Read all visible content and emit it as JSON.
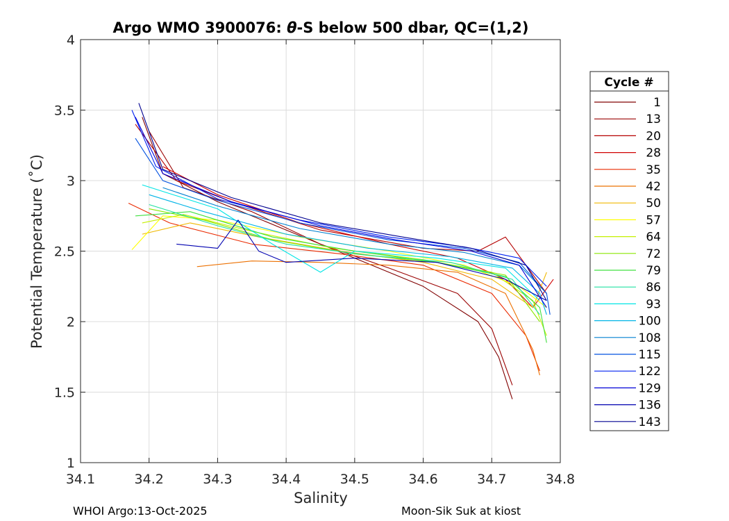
{
  "chart_data": {
    "type": "line",
    "title_prefix": "Argo WMO 3900076: ",
    "title_theta": "θ",
    "title_suffix": "-S below 500 dbar,  QC=(1,2)",
    "xlabel": "Salinity",
    "ylabel": "Potential Temperature (˚C)",
    "xlim": [
      34.1,
      34.8
    ],
    "ylim": [
      1,
      4
    ],
    "xticks": [
      34.1,
      34.2,
      34.3,
      34.4,
      34.5,
      34.6,
      34.7,
      34.8
    ],
    "xtick_labels": [
      "34.1",
      "34.2",
      "34.3",
      "34.4",
      "34.5",
      "34.6",
      "34.7",
      "34.8"
    ],
    "yticks": [
      1,
      1.5,
      2,
      2.5,
      3,
      3.5,
      4
    ],
    "ytick_labels": [
      "1",
      "1.5",
      "2",
      "2.5",
      "3",
      "3.5",
      "4"
    ],
    "grid": true,
    "legend_title": "Cycle #",
    "legend_position": "outside-right",
    "series": [
      {
        "name": "1",
        "color": "#800000",
        "points": [
          [
            34.19,
            3.45
          ],
          [
            34.22,
            3.05
          ],
          [
            34.3,
            2.85
          ],
          [
            34.4,
            2.65
          ],
          [
            34.5,
            2.45
          ],
          [
            34.6,
            2.25
          ],
          [
            34.68,
            2.0
          ],
          [
            34.71,
            1.75
          ],
          [
            34.73,
            1.45
          ]
        ]
      },
      {
        "name": "13",
        "color": "#9a0000",
        "points": [
          [
            34.2,
            3.35
          ],
          [
            34.25,
            2.95
          ],
          [
            34.35,
            2.78
          ],
          [
            34.45,
            2.55
          ],
          [
            34.55,
            2.38
          ],
          [
            34.65,
            2.2
          ],
          [
            34.7,
            1.95
          ],
          [
            34.73,
            1.55
          ]
        ]
      },
      {
        "name": "20",
        "color": "#b50000",
        "points": [
          [
            34.18,
            3.4
          ],
          [
            34.24,
            3.0
          ],
          [
            34.32,
            2.85
          ],
          [
            34.45,
            2.65
          ],
          [
            34.6,
            2.52
          ],
          [
            34.68,
            2.5
          ],
          [
            34.72,
            2.6
          ],
          [
            34.75,
            2.4
          ],
          [
            34.78,
            2.2
          ]
        ]
      },
      {
        "name": "28",
        "color": "#d00000",
        "points": [
          [
            34.22,
            3.1
          ],
          [
            34.3,
            2.9
          ],
          [
            34.42,
            2.7
          ],
          [
            34.55,
            2.55
          ],
          [
            34.65,
            2.45
          ],
          [
            34.72,
            2.3
          ],
          [
            34.76,
            2.1
          ],
          [
            34.79,
            2.3
          ]
        ]
      },
      {
        "name": "35",
        "color": "#ea2a00",
        "points": [
          [
            34.17,
            2.84
          ],
          [
            34.23,
            2.7
          ],
          [
            34.35,
            2.55
          ],
          [
            34.48,
            2.48
          ],
          [
            34.6,
            2.4
          ],
          [
            34.7,
            2.2
          ],
          [
            34.75,
            1.9
          ],
          [
            34.77,
            1.65
          ]
        ]
      },
      {
        "name": "42",
        "color": "#ec7000",
        "points": [
          [
            34.27,
            2.39
          ],
          [
            34.35,
            2.43
          ],
          [
            34.45,
            2.42
          ],
          [
            34.55,
            2.4
          ],
          [
            34.65,
            2.35
          ],
          [
            34.72,
            2.2
          ],
          [
            34.76,
            1.8
          ],
          [
            34.77,
            1.62
          ]
        ]
      },
      {
        "name": "50",
        "color": "#f0b800",
        "points": [
          [
            34.19,
            2.62
          ],
          [
            34.26,
            2.7
          ],
          [
            34.36,
            2.6
          ],
          [
            34.48,
            2.5
          ],
          [
            34.6,
            2.42
          ],
          [
            34.7,
            2.3
          ],
          [
            34.76,
            2.1
          ],
          [
            34.78,
            2.35
          ]
        ]
      },
      {
        "name": "57",
        "color": "#ffff00",
        "points": [
          [
            34.175,
            2.51
          ],
          [
            34.22,
            2.75
          ],
          [
            34.3,
            2.72
          ],
          [
            34.42,
            2.6
          ],
          [
            34.55,
            2.5
          ],
          [
            34.66,
            2.4
          ],
          [
            34.74,
            2.25
          ],
          [
            34.78,
            2.1
          ]
        ]
      },
      {
        "name": "64",
        "color": "#c4f000",
        "points": [
          [
            34.19,
            2.7
          ],
          [
            34.25,
            2.76
          ],
          [
            34.35,
            2.64
          ],
          [
            34.47,
            2.52
          ],
          [
            34.6,
            2.44
          ],
          [
            34.7,
            2.35
          ],
          [
            34.76,
            2.15
          ],
          [
            34.78,
            1.9
          ]
        ]
      },
      {
        "name": "72",
        "color": "#8ae600",
        "points": [
          [
            34.2,
            2.8
          ],
          [
            34.28,
            2.72
          ],
          [
            34.38,
            2.58
          ],
          [
            34.5,
            2.48
          ],
          [
            34.62,
            2.42
          ],
          [
            34.72,
            2.33
          ],
          [
            34.77,
            2.0
          ]
        ]
      },
      {
        "name": "79",
        "color": "#40e040",
        "points": [
          [
            34.18,
            2.75
          ],
          [
            34.26,
            2.78
          ],
          [
            34.38,
            2.6
          ],
          [
            34.5,
            2.5
          ],
          [
            34.62,
            2.42
          ],
          [
            34.72,
            2.32
          ],
          [
            34.77,
            2.1
          ],
          [
            34.78,
            1.85
          ]
        ]
      },
      {
        "name": "86",
        "color": "#20e0a0",
        "points": [
          [
            34.2,
            2.83
          ],
          [
            34.3,
            2.68
          ],
          [
            34.4,
            2.55
          ],
          [
            34.52,
            2.47
          ],
          [
            34.64,
            2.42
          ],
          [
            34.73,
            2.3
          ],
          [
            34.77,
            2.05
          ]
        ]
      },
      {
        "name": "93",
        "color": "#00e5e5",
        "points": [
          [
            34.19,
            2.97
          ],
          [
            34.3,
            2.8
          ],
          [
            34.38,
            2.55
          ],
          [
            34.45,
            2.35
          ],
          [
            34.5,
            2.5
          ],
          [
            34.62,
            2.45
          ],
          [
            34.72,
            2.38
          ],
          [
            34.77,
            2.15
          ]
        ]
      },
      {
        "name": "100",
        "color": "#00b4e6",
        "points": [
          [
            34.2,
            2.9
          ],
          [
            34.28,
            2.78
          ],
          [
            34.4,
            2.62
          ],
          [
            34.52,
            2.52
          ],
          [
            34.64,
            2.46
          ],
          [
            34.73,
            2.38
          ],
          [
            34.77,
            2.2
          ],
          [
            34.78,
            2.05
          ]
        ]
      },
      {
        "name": "108",
        "color": "#0080d0",
        "points": [
          [
            34.22,
            2.95
          ],
          [
            34.3,
            2.82
          ],
          [
            34.42,
            2.66
          ],
          [
            34.55,
            2.55
          ],
          [
            34.66,
            2.49
          ],
          [
            34.74,
            2.4
          ],
          [
            34.78,
            2.2
          ]
        ]
      },
      {
        "name": "115",
        "color": "#0050e0",
        "points": [
          [
            34.18,
            3.3
          ],
          [
            34.22,
            3.0
          ],
          [
            34.3,
            2.86
          ],
          [
            34.42,
            2.7
          ],
          [
            34.55,
            2.58
          ],
          [
            34.66,
            2.52
          ],
          [
            34.74,
            2.42
          ],
          [
            34.78,
            2.2
          ],
          [
            34.785,
            2.05
          ]
        ]
      },
      {
        "name": "122",
        "color": "#0020f0",
        "points": [
          [
            34.175,
            3.5
          ],
          [
            34.21,
            3.1
          ],
          [
            34.3,
            2.87
          ],
          [
            34.42,
            2.72
          ],
          [
            34.55,
            2.6
          ],
          [
            34.66,
            2.53
          ],
          [
            34.74,
            2.45
          ],
          [
            34.78,
            2.25
          ]
        ]
      },
      {
        "name": "129",
        "color": "#0000d8",
        "points": [
          [
            34.18,
            3.45
          ],
          [
            34.22,
            3.05
          ],
          [
            34.32,
            2.85
          ],
          [
            34.45,
            2.68
          ],
          [
            34.56,
            2.58
          ],
          [
            34.67,
            2.5
          ],
          [
            34.74,
            2.4
          ],
          [
            34.78,
            2.1
          ]
        ]
      },
      {
        "name": "136",
        "color": "#0000b0",
        "points": [
          [
            34.24,
            2.55
          ],
          [
            34.3,
            2.52
          ],
          [
            34.33,
            2.72
          ],
          [
            34.36,
            2.5
          ],
          [
            34.4,
            2.42
          ],
          [
            34.5,
            2.45
          ],
          [
            34.62,
            2.42
          ],
          [
            34.72,
            2.3
          ],
          [
            34.78,
            2.15
          ]
        ]
      },
      {
        "name": "143",
        "color": "#000090",
        "points": [
          [
            34.185,
            3.55
          ],
          [
            34.22,
            3.08
          ],
          [
            34.32,
            2.88
          ],
          [
            34.45,
            2.7
          ],
          [
            34.57,
            2.6
          ],
          [
            34.67,
            2.52
          ],
          [
            34.75,
            2.4
          ],
          [
            34.78,
            2.15
          ]
        ]
      }
    ]
  },
  "footer": {
    "left": "WHOI Argo:13-Oct-2025",
    "right": "Moon-Sik Suk at kiost"
  }
}
